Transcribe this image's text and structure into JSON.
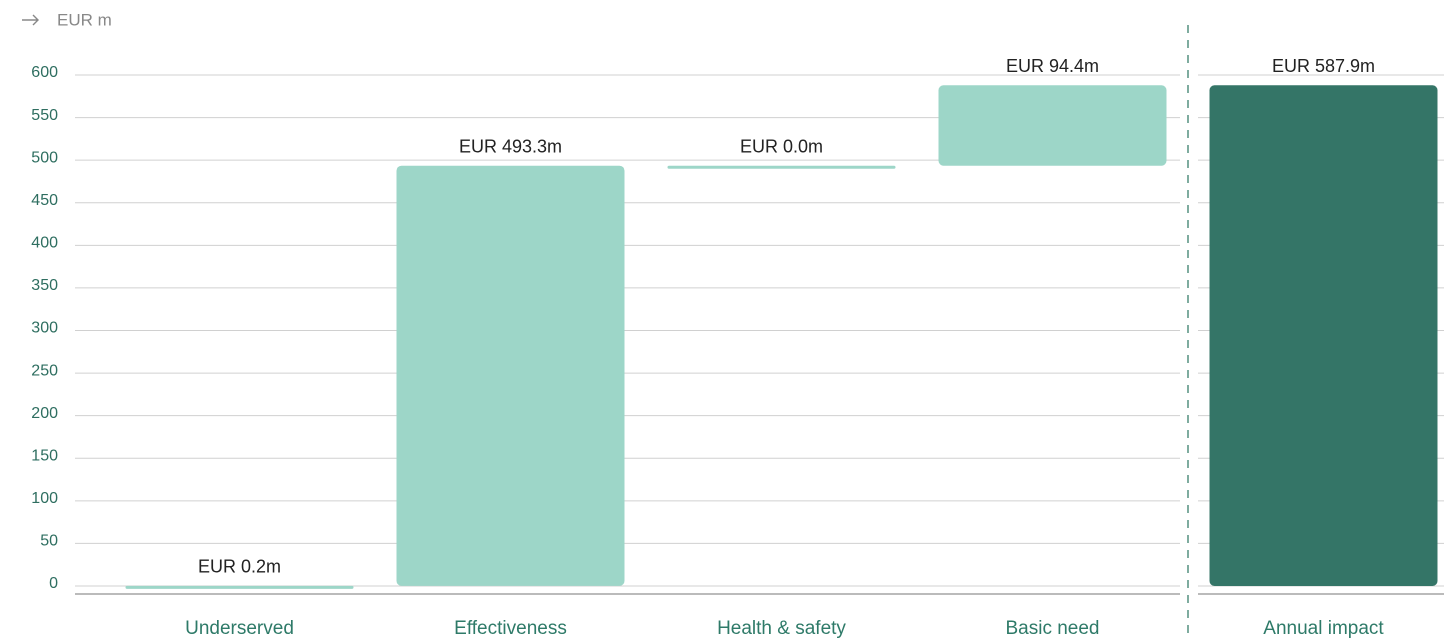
{
  "chart_data": {
    "type": "waterfall",
    "unit_label": "EUR m",
    "categories": [
      "Underserved",
      "Effectiveness",
      "Health & safety",
      "Basic need",
      "Annual impact"
    ],
    "values": [
      0.2,
      493.3,
      0.0,
      94.4,
      587.9
    ],
    "value_labels": [
      "EUR 0.2m",
      "EUR 493.3m",
      "EUR 0.0m",
      "EUR 94.4m",
      "EUR 587.9m"
    ],
    "measure": [
      "relative",
      "relative",
      "relative",
      "relative",
      "total"
    ],
    "color": "#9dd6c8",
    "total_color": "#347567",
    "ylim": [
      0,
      600
    ],
    "yticks": [
      0,
      50,
      100,
      150,
      200,
      250,
      300,
      350,
      400,
      450,
      500,
      550,
      600
    ],
    "grid": true
  }
}
